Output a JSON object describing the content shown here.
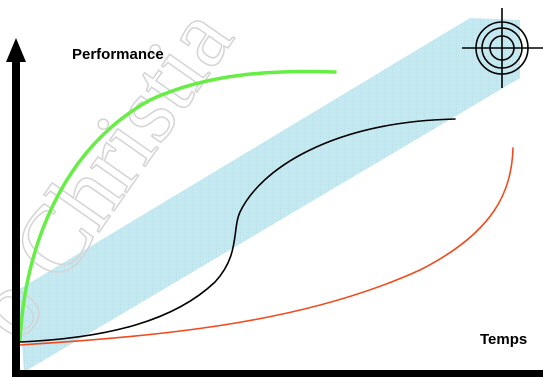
{
  "watermark": {
    "text": "o Christia"
  },
  "axes": {
    "y_label": "Performance",
    "x_label": "Temps"
  },
  "colors": {
    "band": "#bfe6ef",
    "curve_green": "#66ee44",
    "curve_black": "#000000",
    "curve_red": "#f04a1f",
    "axis": "#000000",
    "target": "#000000"
  },
  "icons": {
    "target": "crosshair-target-icon"
  }
}
